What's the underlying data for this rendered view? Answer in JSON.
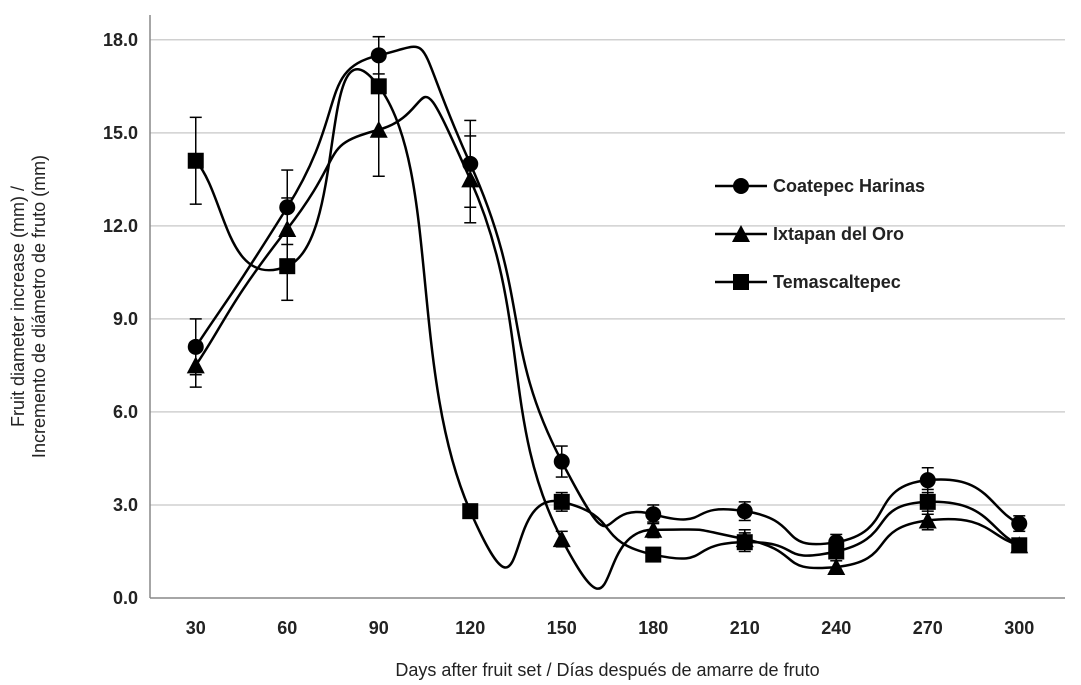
{
  "chart_data": {
    "type": "line",
    "title": "",
    "xlabel": "Days after fruit set / Días después de amarre de fruto",
    "ylabel_lines": [
      "Fruit diameter increase (mm) /",
      "Incremento de diámetro de fruto (mm)"
    ],
    "categories": [
      "30",
      "60",
      "90",
      "120",
      "150",
      "180",
      "210",
      "240",
      "270",
      "300"
    ],
    "x": [
      30,
      60,
      90,
      120,
      150,
      180,
      210,
      240,
      270,
      300
    ],
    "ylim": [
      0,
      18.8
    ],
    "yticks": [
      0,
      3,
      6,
      9,
      12,
      15,
      18
    ],
    "ytick_labels": [
      "0.0",
      "3.0",
      "6.0",
      "9.0",
      "12.0",
      "15.0",
      "18.0"
    ],
    "grid": "horizontal",
    "legend_position": "right",
    "line_color": "#000000",
    "grid_color": "#d0d0d0",
    "series": [
      {
        "name": "Coatepec Harinas",
        "marker": "circle",
        "values": [
          8.1,
          12.6,
          17.5,
          14.0,
          4.4,
          2.7,
          2.8,
          1.8,
          3.8,
          2.4
        ],
        "errors": [
          0.9,
          1.2,
          0.6,
          1.4,
          0.5,
          0.3,
          0.3,
          0.25,
          0.4,
          0.25
        ]
      },
      {
        "name": "Ixtapan del Oro",
        "marker": "triangle",
        "values": [
          7.5,
          11.9,
          15.1,
          13.5,
          1.9,
          2.2,
          1.9,
          1.0,
          2.5,
          1.7
        ],
        "errors": [
          0.7,
          1.0,
          1.5,
          1.4,
          0.25,
          0.25,
          0.3,
          0.2,
          0.3,
          0.2
        ]
      },
      {
        "name": "Temascaltepec",
        "marker": "square",
        "values": [
          14.1,
          10.7,
          16.5,
          2.8,
          3.1,
          1.4,
          1.8,
          1.5,
          3.1,
          1.7
        ],
        "errors": [
          1.4,
          1.1,
          1.6,
          0.2,
          0.3,
          0.2,
          0.3,
          0.2,
          0.4,
          0.2
        ]
      }
    ]
  }
}
